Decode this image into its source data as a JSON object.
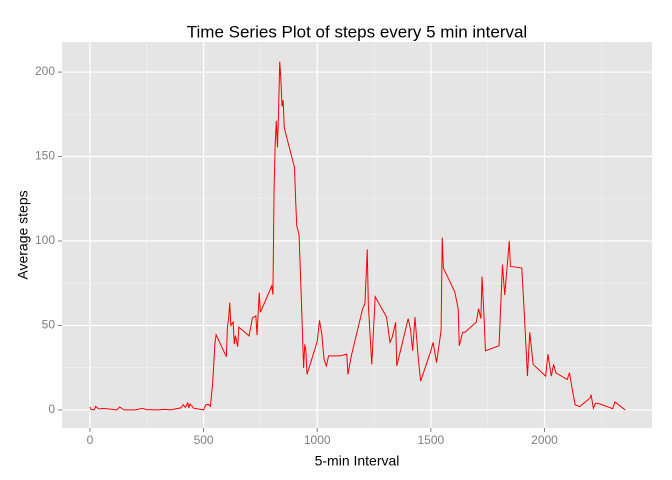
{
  "chart_data": {
    "type": "line",
    "title": "Time Series Plot of steps every 5 min interval",
    "x_label": "5-min Interval",
    "y_label": "Average steps",
    "xlim": [
      -123,
      2473
    ],
    "ylim": [
      -10.7,
      217.8
    ],
    "xticks": [
      0,
      500,
      1000,
      1500,
      2000
    ],
    "yticks": [
      0,
      50,
      100,
      150,
      200
    ],
    "x_minor_grid": [
      250,
      750,
      1250,
      1750,
      2250
    ],
    "y_minor_grid": [
      25,
      75,
      125,
      175
    ],
    "grid": true,
    "x": [
      0,
      5,
      10,
      20,
      25,
      40,
      55,
      100,
      115,
      120,
      130,
      150,
      200,
      230,
      250,
      300,
      330,
      355,
      400,
      410,
      420,
      430,
      435,
      440,
      450,
      455,
      500,
      505,
      510,
      520,
      530,
      540,
      550,
      555,
      600,
      605,
      610,
      615,
      620,
      630,
      635,
      640,
      650,
      655,
      700,
      715,
      730,
      735,
      745,
      750,
      800,
      805,
      810,
      815,
      820,
      825,
      830,
      835,
      840,
      845,
      850,
      855,
      900,
      905,
      910,
      920,
      930,
      935,
      940,
      945,
      950,
      955,
      1000,
      1010,
      1020,
      1030,
      1040,
      1050,
      1100,
      1130,
      1135,
      1150,
      1200,
      1210,
      1220,
      1225,
      1240,
      1255,
      1305,
      1320,
      1330,
      1345,
      1350,
      1400,
      1410,
      1420,
      1430,
      1445,
      1455,
      1500,
      1510,
      1525,
      1545,
      1550,
      1555,
      1605,
      1620,
      1625,
      1640,
      1650,
      1700,
      1710,
      1720,
      1725,
      1735,
      1740,
      1800,
      1815,
      1825,
      1845,
      1850,
      1900,
      1910,
      1925,
      1935,
      1950,
      2005,
      2015,
      2030,
      2040,
      2050,
      2100,
      2110,
      2125,
      2135,
      2155,
      2200,
      2205,
      2215,
      2225,
      2245,
      2300,
      2310,
      2355
    ],
    "series": [
      {
        "name": "Average steps",
        "color": "#ff0000",
        "values": [
          1.7,
          0.3,
          0.1,
          0.1,
          2.1,
          0.5,
          0.9,
          0.3,
          0,
          0.1,
          1.8,
          0,
          0,
          0.9,
          0.2,
          0,
          0.3,
          0,
          1.2,
          3.1,
          1.5,
          4.1,
          1.1,
          3.5,
          2.2,
          1.1,
          0,
          1.5,
          3,
          3.3,
          2.1,
          16,
          39.5,
          44.5,
          31.5,
          49.3,
          53.8,
          63.5,
          50,
          52,
          39,
          44,
          37.4,
          49,
          43.8,
          54.5,
          55.7,
          44.3,
          69.5,
          57.8,
          73.4,
          68.2,
          129.4,
          157.5,
          171.2,
          155.4,
          177.3,
          206.2,
          195.9,
          179.6,
          183.4,
          167,
          143.5,
          124,
          109,
          103.7,
          66.2,
          45.2,
          24.8,
          38.8,
          35,
          21,
          40.6,
          53,
          45,
          30,
          26,
          32,
          32,
          33,
          21,
          32,
          60,
          63,
          95,
          62,
          27,
          67,
          55,
          40,
          43,
          52,
          26,
          54,
          48,
          35,
          55,
          30,
          17,
          35,
          40,
          28,
          47,
          102,
          84,
          70,
          60,
          38,
          46,
          46,
          52,
          60,
          54,
          79,
          52,
          35,
          38,
          86,
          68,
          100,
          85,
          84,
          60,
          20,
          46,
          27,
          20,
          33,
          20,
          27,
          22,
          18,
          22,
          10,
          3,
          2,
          7,
          9,
          1,
          4,
          3.5,
          0.7,
          4.7,
          0
        ]
      }
    ]
  }
}
